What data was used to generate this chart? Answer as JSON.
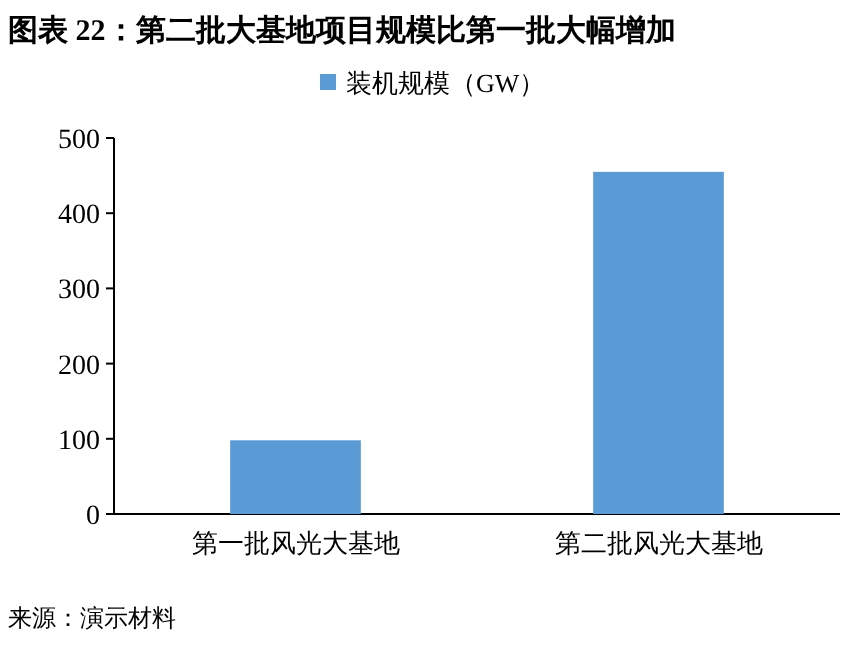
{
  "chart_data": {
    "type": "bar",
    "title": "图表 22：第二批大基地项目规模比第一批大幅增加",
    "categories": [
      "第一批风光大基地",
      "第二批风光大基地"
    ],
    "series": [
      {
        "name": "装机规模（GW）",
        "color": "#5b9bd5",
        "values": [
          98,
          455
        ]
      }
    ],
    "ylim": [
      0,
      500
    ],
    "yticks": [
      0,
      100,
      200,
      300,
      400,
      500
    ],
    "grid": false,
    "legend": "top",
    "annotations": [
      "来源：演示材料"
    ]
  }
}
